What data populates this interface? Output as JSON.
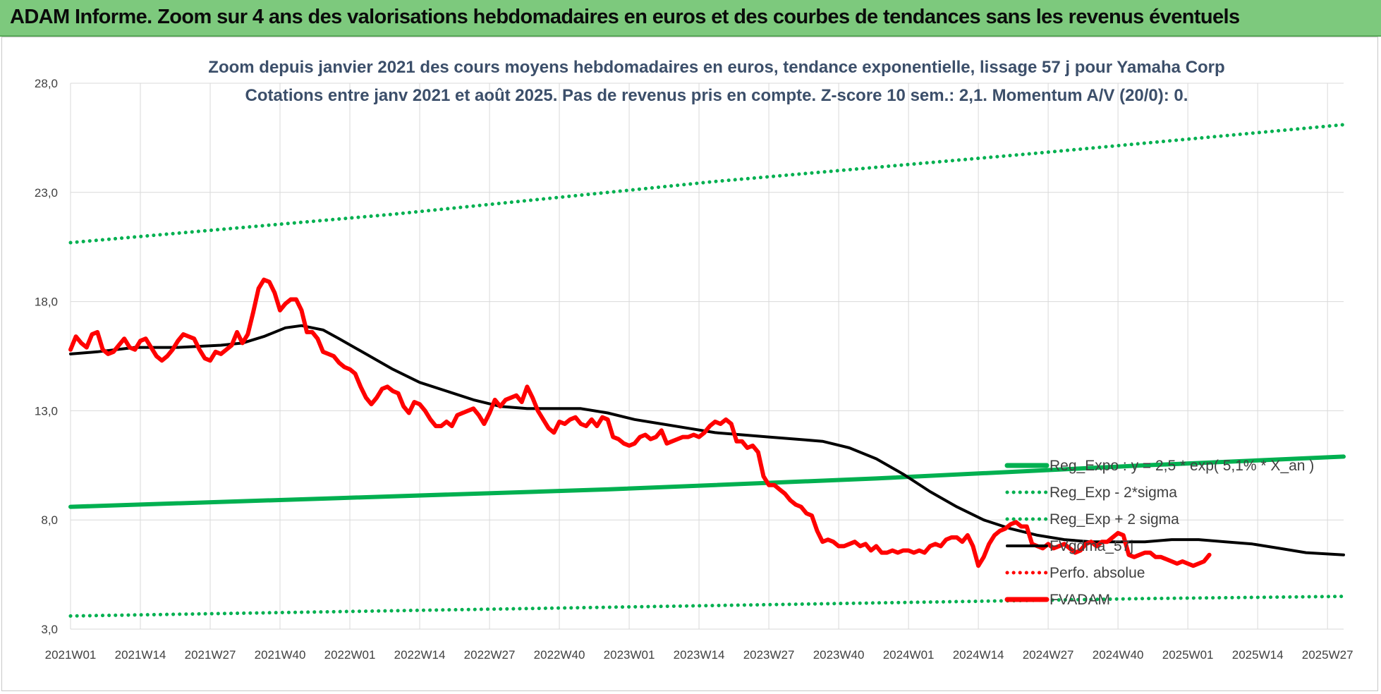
{
  "banner": {
    "title": "ADAM Informe. Zoom sur 4 ans des valorisations hebdomadaires en euros et des courbes de tendances sans les revenus éventuels"
  },
  "colors": {
    "banner_bg": "#7dc97d",
    "price": "#ff0000",
    "smoothed": "#000000",
    "regression": "#00b050",
    "bands": "#00b050",
    "perfo": "#ff0000",
    "title_text": "#3c4f6a",
    "grid": "#d9d9d9"
  },
  "chart_data": {
    "type": "line",
    "title": "Zoom depuis janvier 2021 des cours moyens hebdomadaires en euros, tendance exponentielle, lissage 57 j pour Yamaha Corp",
    "subtitle": "Cotations entre janv 2021 et août 2025.  Pas de revenus pris en compte. Z-score 10 sem.: 2,1. Momentum A/V (20/0): 0.",
    "xlabel": "",
    "ylabel": "",
    "x_ticks": [
      "2021W01",
      "2021W14",
      "2021W27",
      "2021W40",
      "2022W01",
      "2022W14",
      "2022W27",
      "2022W40",
      "2023W01",
      "2023W14",
      "2023W27",
      "2023W40",
      "2024W01",
      "2024W14",
      "2024W27",
      "2024W40",
      "2025W01",
      "2025W14",
      "2025W27"
    ],
    "x_range_weeks": [
      0,
      237
    ],
    "y_ticks": [
      "3,0",
      "8,0",
      "13,0",
      "18,0",
      "23,0",
      "28,0"
    ],
    "ylim": [
      3,
      28
    ],
    "grid": true,
    "legend_position": "right",
    "series": [
      {
        "name": "Reg_Expo : y = 2,5 * exp( 5,1% *  X_an )",
        "style": "solid-thick",
        "color": "#00b050",
        "points": [
          [
            0,
            8.6
          ],
          [
            50,
            9.0
          ],
          [
            100,
            9.4
          ],
          [
            150,
            9.9
          ],
          [
            200,
            10.5
          ],
          [
            237,
            10.9
          ]
        ]
      },
      {
        "name": "Reg_Exp - 2*sigma",
        "style": "dotted",
        "color": "#00b050",
        "points": [
          [
            0,
            3.6
          ],
          [
            100,
            4.0
          ],
          [
            200,
            4.4
          ],
          [
            237,
            4.5
          ]
        ]
      },
      {
        "name": "Reg_Exp + 2 sigma",
        "style": "dotted",
        "color": "#00b050",
        "points": [
          [
            0,
            20.7
          ],
          [
            60,
            22.0
          ],
          [
            120,
            23.5
          ],
          [
            180,
            24.8
          ],
          [
            237,
            26.1
          ]
        ]
      },
      {
        "name": "FVgdma_57j",
        "style": "solid",
        "color": "#000000",
        "points": [
          [
            0,
            15.6
          ],
          [
            5,
            15.7
          ],
          [
            12,
            15.9
          ],
          [
            20,
            15.9
          ],
          [
            28,
            16.0
          ],
          [
            32,
            16.1
          ],
          [
            36,
            16.4
          ],
          [
            40,
            16.8
          ],
          [
            43,
            16.9
          ],
          [
            47,
            16.7
          ],
          [
            50,
            16.3
          ],
          [
            55,
            15.6
          ],
          [
            60,
            14.9
          ],
          [
            65,
            14.3
          ],
          [
            70,
            13.9
          ],
          [
            75,
            13.5
          ],
          [
            80,
            13.2
          ],
          [
            85,
            13.1
          ],
          [
            95,
            13.1
          ],
          [
            100,
            12.9
          ],
          [
            105,
            12.6
          ],
          [
            110,
            12.4
          ],
          [
            115,
            12.2
          ],
          [
            120,
            12.0
          ],
          [
            125,
            11.9
          ],
          [
            130,
            11.8
          ],
          [
            135,
            11.7
          ],
          [
            140,
            11.6
          ],
          [
            145,
            11.3
          ],
          [
            150,
            10.8
          ],
          [
            155,
            10.1
          ],
          [
            160,
            9.3
          ],
          [
            165,
            8.6
          ],
          [
            170,
            8.0
          ],
          [
            175,
            7.6
          ],
          [
            180,
            7.3
          ],
          [
            185,
            7.1
          ],
          [
            190,
            7.0
          ],
          [
            200,
            7.0
          ],
          [
            205,
            7.1
          ],
          [
            210,
            7.1
          ],
          [
            215,
            7.0
          ],
          [
            220,
            6.9
          ],
          [
            225,
            6.7
          ],
          [
            230,
            6.5
          ],
          [
            237,
            6.4
          ]
        ]
      },
      {
        "name": "Perfo. absolue",
        "style": "dotted",
        "color": "#ff0000",
        "points": []
      },
      {
        "name": "FVADAM",
        "style": "solid-thick",
        "color": "#ff0000",
        "points": [
          [
            0,
            15.8
          ],
          [
            1,
            16.4
          ],
          [
            2,
            16.1
          ],
          [
            3,
            15.9
          ],
          [
            4,
            16.5
          ],
          [
            5,
            16.6
          ],
          [
            6,
            15.8
          ],
          [
            7,
            15.6
          ],
          [
            8,
            15.7
          ],
          [
            9,
            16.0
          ],
          [
            10,
            16.3
          ],
          [
            11,
            15.9
          ],
          [
            12,
            15.8
          ],
          [
            13,
            16.2
          ],
          [
            14,
            16.3
          ],
          [
            15,
            15.9
          ],
          [
            16,
            15.5
          ],
          [
            17,
            15.3
          ],
          [
            18,
            15.5
          ],
          [
            19,
            15.8
          ],
          [
            20,
            16.2
          ],
          [
            21,
            16.5
          ],
          [
            22,
            16.4
          ],
          [
            23,
            16.3
          ],
          [
            24,
            15.8
          ],
          [
            25,
            15.4
          ],
          [
            26,
            15.3
          ],
          [
            27,
            15.7
          ],
          [
            28,
            15.6
          ],
          [
            29,
            15.8
          ],
          [
            30,
            16.0
          ],
          [
            31,
            16.6
          ],
          [
            32,
            16.1
          ],
          [
            33,
            16.5
          ],
          [
            34,
            17.5
          ],
          [
            35,
            18.6
          ],
          [
            36,
            19.0
          ],
          [
            37,
            18.9
          ],
          [
            38,
            18.4
          ],
          [
            39,
            17.6
          ],
          [
            40,
            17.9
          ],
          [
            41,
            18.1
          ],
          [
            42,
            18.1
          ],
          [
            43,
            17.6
          ],
          [
            44,
            16.6
          ],
          [
            45,
            16.6
          ],
          [
            46,
            16.3
          ],
          [
            47,
            15.7
          ],
          [
            48,
            15.6
          ],
          [
            49,
            15.5
          ],
          [
            50,
            15.2
          ],
          [
            51,
            15.0
          ],
          [
            52,
            14.9
          ],
          [
            53,
            14.7
          ],
          [
            54,
            14.1
          ],
          [
            55,
            13.6
          ],
          [
            56,
            13.3
          ],
          [
            57,
            13.6
          ],
          [
            58,
            14.0
          ],
          [
            59,
            14.1
          ],
          [
            60,
            13.9
          ],
          [
            61,
            13.8
          ],
          [
            62,
            13.2
          ],
          [
            63,
            12.9
          ],
          [
            64,
            13.4
          ],
          [
            65,
            13.3
          ],
          [
            66,
            13.0
          ],
          [
            67,
            12.6
          ],
          [
            68,
            12.3
          ],
          [
            69,
            12.3
          ],
          [
            70,
            12.5
          ],
          [
            71,
            12.3
          ],
          [
            72,
            12.8
          ],
          [
            73,
            12.9
          ],
          [
            74,
            13.0
          ],
          [
            75,
            13.1
          ],
          [
            76,
            12.8
          ],
          [
            77,
            12.4
          ],
          [
            78,
            12.9
          ],
          [
            79,
            13.5
          ],
          [
            80,
            13.2
          ],
          [
            81,
            13.5
          ],
          [
            82,
            13.6
          ],
          [
            83,
            13.7
          ],
          [
            84,
            13.4
          ],
          [
            85,
            14.1
          ],
          [
            86,
            13.6
          ],
          [
            87,
            13.0
          ],
          [
            88,
            12.6
          ],
          [
            89,
            12.2
          ],
          [
            90,
            12.0
          ],
          [
            91,
            12.5
          ],
          [
            92,
            12.4
          ],
          [
            93,
            12.6
          ],
          [
            94,
            12.7
          ],
          [
            95,
            12.4
          ],
          [
            96,
            12.3
          ],
          [
            97,
            12.6
          ],
          [
            98,
            12.3
          ],
          [
            99,
            12.7
          ],
          [
            100,
            12.6
          ],
          [
            101,
            11.8
          ],
          [
            102,
            11.7
          ],
          [
            103,
            11.5
          ],
          [
            104,
            11.4
          ],
          [
            105,
            11.5
          ],
          [
            106,
            11.8
          ],
          [
            107,
            11.9
          ],
          [
            108,
            11.7
          ],
          [
            109,
            11.8
          ],
          [
            110,
            12.1
          ],
          [
            111,
            11.5
          ],
          [
            112,
            11.6
          ],
          [
            113,
            11.7
          ],
          [
            114,
            11.8
          ],
          [
            115,
            11.8
          ],
          [
            116,
            11.9
          ],
          [
            117,
            11.8
          ],
          [
            118,
            12.0
          ],
          [
            119,
            12.3
          ],
          [
            120,
            12.5
          ],
          [
            121,
            12.4
          ],
          [
            122,
            12.6
          ],
          [
            123,
            12.4
          ],
          [
            124,
            11.6
          ],
          [
            125,
            11.6
          ],
          [
            126,
            11.3
          ],
          [
            127,
            11.4
          ],
          [
            128,
            11.1
          ],
          [
            129,
            10.0
          ],
          [
            130,
            9.6
          ],
          [
            131,
            9.6
          ],
          [
            132,
            9.4
          ],
          [
            133,
            9.2
          ],
          [
            134,
            8.9
          ],
          [
            135,
            8.7
          ],
          [
            136,
            8.6
          ],
          [
            137,
            8.3
          ],
          [
            138,
            8.2
          ],
          [
            139,
            7.5
          ],
          [
            140,
            7.0
          ],
          [
            141,
            7.1
          ],
          [
            142,
            7.0
          ],
          [
            143,
            6.8
          ],
          [
            144,
            6.8
          ],
          [
            145,
            6.9
          ],
          [
            146,
            7.0
          ],
          [
            147,
            6.8
          ],
          [
            148,
            6.9
          ],
          [
            149,
            6.6
          ],
          [
            150,
            6.8
          ],
          [
            151,
            6.5
          ],
          [
            152,
            6.5
          ],
          [
            153,
            6.6
          ],
          [
            154,
            6.5
          ],
          [
            155,
            6.6
          ],
          [
            156,
            6.6
          ],
          [
            157,
            6.5
          ],
          [
            158,
            6.6
          ],
          [
            159,
            6.5
          ],
          [
            160,
            6.8
          ],
          [
            161,
            6.9
          ],
          [
            162,
            6.8
          ],
          [
            163,
            7.1
          ],
          [
            164,
            7.2
          ],
          [
            165,
            7.2
          ],
          [
            166,
            7.0
          ],
          [
            167,
            7.3
          ],
          [
            168,
            6.8
          ],
          [
            169,
            5.9
          ],
          [
            170,
            6.3
          ],
          [
            171,
            6.9
          ],
          [
            172,
            7.3
          ],
          [
            173,
            7.5
          ],
          [
            174,
            7.6
          ],
          [
            175,
            7.8
          ],
          [
            176,
            7.9
          ],
          [
            177,
            7.7
          ],
          [
            178,
            7.7
          ],
          [
            179,
            6.9
          ],
          [
            180,
            6.8
          ],
          [
            181,
            6.7
          ],
          [
            182,
            6.9
          ],
          [
            183,
            6.7
          ],
          [
            184,
            6.8
          ],
          [
            185,
            6.9
          ],
          [
            186,
            6.7
          ],
          [
            187,
            6.5
          ],
          [
            188,
            6.6
          ],
          [
            189,
            6.9
          ],
          [
            190,
            7.0
          ],
          [
            191,
            6.8
          ],
          [
            192,
            7.0
          ],
          [
            193,
            7.0
          ],
          [
            194,
            7.2
          ],
          [
            195,
            7.4
          ],
          [
            196,
            7.3
          ],
          [
            197,
            6.4
          ],
          [
            198,
            6.3
          ],
          [
            199,
            6.4
          ],
          [
            200,
            6.5
          ],
          [
            201,
            6.5
          ],
          [
            202,
            6.3
          ],
          [
            203,
            6.3
          ],
          [
            204,
            6.2
          ],
          [
            205,
            6.1
          ],
          [
            206,
            6.0
          ],
          [
            207,
            6.1
          ],
          [
            208,
            6.0
          ],
          [
            209,
            5.9
          ],
          [
            210,
            6.0
          ],
          [
            211,
            6.1
          ],
          [
            212,
            6.4
          ]
        ]
      }
    ]
  }
}
